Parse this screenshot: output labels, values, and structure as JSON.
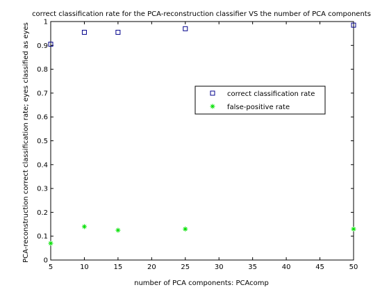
{
  "chart_data": {
    "type": "scatter",
    "title": "correct classification rate for the PCA-reconstruction classifier VS the number of PCA components",
    "xlabel": "number of PCA components: PCAcomp",
    "ylabel": "PCA-reconstruction correct classification rate; eyes classified as eyes",
    "xlim": [
      5,
      50
    ],
    "ylim": [
      0,
      1
    ],
    "xticks": [
      "5",
      "10",
      "15",
      "20",
      "25",
      "30",
      "35",
      "40",
      "45",
      "50"
    ],
    "yticks": [
      "0",
      "0.1",
      "0.2",
      "0.3",
      "0.4",
      "0.5",
      "0.6",
      "0.7",
      "0.8",
      "0.9",
      "1"
    ],
    "grid": false,
    "legend_position": "center-right",
    "series": [
      {
        "name": "correct classification rate",
        "marker": "square",
        "color": "#00008b",
        "x": [
          5,
          10,
          15,
          25,
          50
        ],
        "y": [
          0.905,
          0.955,
          0.955,
          0.97,
          0.985
        ]
      },
      {
        "name": "false-positive rate",
        "marker": "star",
        "color": "#00e000",
        "x": [
          5,
          10,
          15,
          25,
          50
        ],
        "y": [
          0.07,
          0.14,
          0.125,
          0.13,
          0.13
        ]
      }
    ]
  }
}
